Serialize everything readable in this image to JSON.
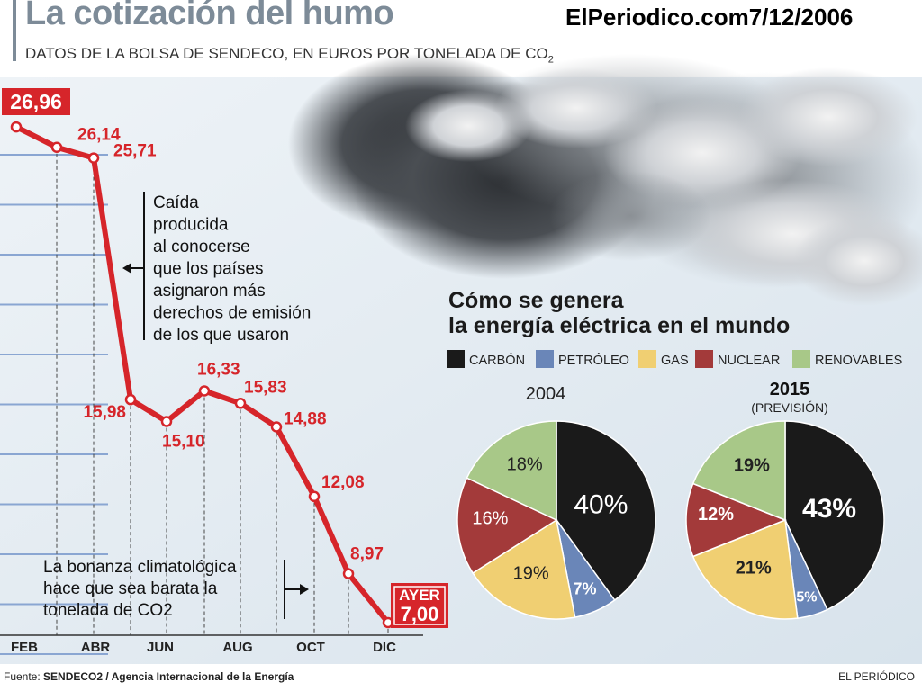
{
  "header": {
    "title": "La cotización del humo",
    "subtitle": "DATOS DE LA BOLSA DE SENDECO, EN EUROS POR TONELADA DE CO",
    "subtitle_sub": "2",
    "brand": "ElPeriodico.com7/12/2006"
  },
  "annotations": {
    "drop_note": [
      "Caída",
      "producida",
      "al conocerse",
      "que los países",
      "asignaron más",
      "derechos de emisión",
      "de los que usaron"
    ],
    "cheap_note": [
      "La bonanza climatológica",
      "hace que sea barata la",
      "tonelada de CO2"
    ],
    "ayer_label": "AYER"
  },
  "pies_section": {
    "title_line1": "Cómo se genera",
    "title_line2": "la energía eléctrica en el mundo",
    "legend": [
      {
        "label": "CARBÓN",
        "color": "#1a1a1a"
      },
      {
        "label": "PETRÓLEO",
        "color": "#6a86b8"
      },
      {
        "label": "GAS",
        "color": "#f0cf72"
      },
      {
        "label": "NUCLEAR",
        "color": "#a33a3a"
      },
      {
        "label": "RENOVABLES",
        "color": "#a8c888"
      }
    ],
    "pie_2004_title": "2004",
    "pie_2015_title": "2015",
    "pie_2015_subtitle": "(PREVISIÓN)"
  },
  "colors": {
    "line": "#d6252a",
    "grid": "#8aa6d2",
    "text_red": "#d6252a"
  },
  "chart_data": [
    {
      "type": "line",
      "title": "La cotización del humo",
      "ylabel": "",
      "x_tick_labels": [
        "FEB",
        "ABR",
        "JUN",
        "AUG",
        "OCT",
        "DIC"
      ],
      "ylim": [
        7,
        27
      ],
      "points": [
        26.96,
        26.14,
        25.71,
        15.98,
        15.1,
        16.33,
        15.83,
        14.88,
        12.08,
        8.97,
        7.0
      ],
      "labels": [
        "26,96",
        "26,14",
        "25,71",
        "15,98",
        "15,10",
        "16,33",
        "15,83",
        "14,88",
        "12,08",
        "8,97",
        "7,00"
      ]
    },
    {
      "type": "pie",
      "title": "2004",
      "slices": [
        {
          "name": "CARBÓN",
          "value": 40,
          "label": "40%"
        },
        {
          "name": "PETRÓLEO",
          "value": 7,
          "label": "7%"
        },
        {
          "name": "GAS",
          "value": 19,
          "label": "19%"
        },
        {
          "name": "NUCLEAR",
          "value": 16,
          "label": "16%"
        },
        {
          "name": "RENOVABLES",
          "value": 18,
          "label": "18%"
        }
      ]
    },
    {
      "type": "pie",
      "title": "2015",
      "subtitle": "(PREVISIÓN)",
      "slices": [
        {
          "name": "CARBÓN",
          "value": 43,
          "label": "43%"
        },
        {
          "name": "PETRÓLEO",
          "value": 5,
          "label": "5%"
        },
        {
          "name": "GAS",
          "value": 21,
          "label": "21%"
        },
        {
          "name": "NUCLEAR",
          "value": 12,
          "label": "12%"
        },
        {
          "name": "RENOVABLES",
          "value": 19,
          "label": "19%"
        }
      ]
    }
  ],
  "footer": {
    "source_prefix": "Fuente: ",
    "source": "SENDECO2 / Agencia Internacional de la Energía",
    "credit": "EL PERIÓDICO"
  }
}
